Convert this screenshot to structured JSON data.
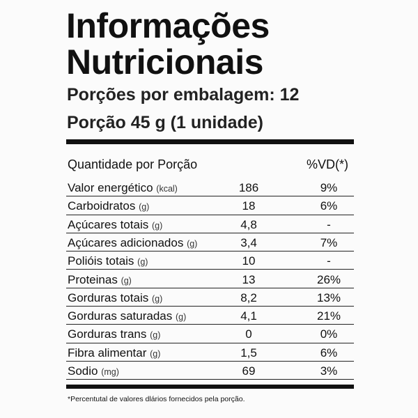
{
  "title_lines": [
    "Informações",
    "Nutricionais"
  ],
  "servings_per_package": "Porções por embalagem: 12",
  "serving_size": "Porção 45 g (1 unidade)",
  "table": {
    "header": {
      "quantity": "Quantidade por Porção",
      "dv": "%VD(*)"
    },
    "rows": [
      {
        "name": "Valor energético",
        "unit": "(kcal)",
        "amount": "186",
        "dv": "9%"
      },
      {
        "name": "Carboidratos",
        "unit": "(g)",
        "amount": "18",
        "dv": "6%"
      },
      {
        "name": "Açúcares totais",
        "unit": "(g)",
        "amount": "4,8",
        "dv": "-"
      },
      {
        "name": "Açúcares adicionados",
        "unit": "(g)",
        "amount": "3,4",
        "dv": "7%"
      },
      {
        "name": "Polióis totais",
        "unit": "(g)",
        "amount": "10",
        "dv": "-"
      },
      {
        "name": "Proteinas",
        "unit": "(g)",
        "amount": "13",
        "dv": "26%"
      },
      {
        "name": "Gorduras totais",
        "unit": "(g)",
        "amount": "8,2",
        "dv": "13%"
      },
      {
        "name": "Gorduras saturadas",
        "unit": "(g)",
        "amount": "4,1",
        "dv": "21%"
      },
      {
        "name": "Gorduras trans",
        "unit": "(g)",
        "amount": "0",
        "dv": "0%"
      },
      {
        "name": "Fibra alimentar",
        "unit": "(g)",
        "amount": "1,5",
        "dv": "6%"
      },
      {
        "name": "Sodio",
        "unit": "(mg)",
        "amount": "69",
        "dv": "3%"
      }
    ]
  },
  "footnote": "*Percentutal de valores dlários fornecidos pela porção."
}
